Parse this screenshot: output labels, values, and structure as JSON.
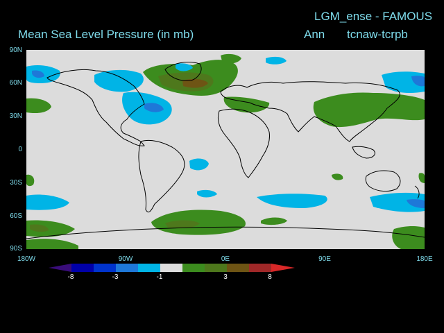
{
  "header": {
    "run_title": "LGM_ense - FAMOUS",
    "variable_title": "Mean Sea Level Pressure (in mb)",
    "season": "Ann",
    "experiment": "tcnaw-tcrpb"
  },
  "axes": {
    "lat_labels": [
      "90N",
      "60N",
      "30N",
      "0",
      "30S",
      "60S",
      "90S"
    ],
    "lon_labels": [
      "180W",
      "90W",
      "0E",
      "90E",
      "180E"
    ]
  },
  "colorbar": {
    "tick_labels": [
      "-8",
      "-3",
      "-1",
      "3",
      "8"
    ],
    "colors": [
      "#3a0d7a",
      "#0000a8",
      "#0033cc",
      "#1e78d8",
      "#00b4e6",
      "#dcdcdc",
      "#3c8c1e",
      "#4e781c",
      "#6e5414",
      "#a02828",
      "#d82828"
    ]
  },
  "map_colors": {
    "background": "#dcdcdc",
    "light_blue": "#00b4e6",
    "mid_blue": "#1e78d8",
    "dark_blue": "#0033cc",
    "green": "#3c8c1e",
    "olive": "#4e781c",
    "brown": "#6e5414"
  }
}
